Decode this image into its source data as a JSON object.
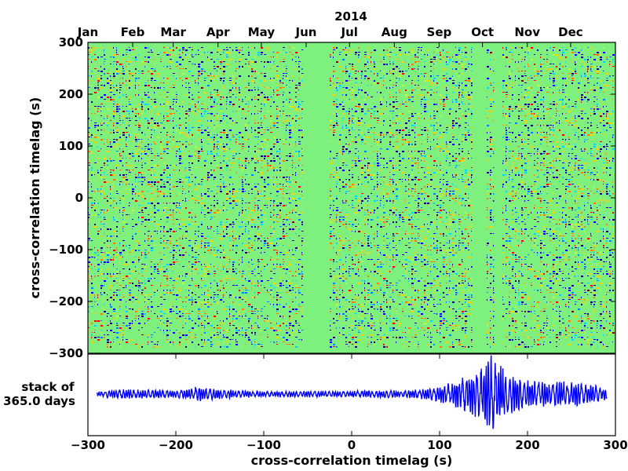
{
  "colors": {
    "background_fill": "#7ef07e",
    "waveform": "#0000ff",
    "palette": [
      "#00007f",
      "#0000ff",
      "#0080ff",
      "#00d4ff",
      "#40ffb7",
      "#b7ff40",
      "#ffd400",
      "#ff7a00",
      "#ff0000",
      "#7f0000"
    ]
  },
  "chart_data": [
    {
      "type": "heatmap",
      "title": "",
      "year_label": "2014",
      "month_labels": [
        "Jan",
        "Feb",
        "Mar",
        "Apr",
        "May",
        "Jun",
        "Jul",
        "Aug",
        "Sep",
        "Oct",
        "Nov",
        "Dec"
      ],
      "ylabel": "cross-correlation timelag (s)",
      "ylim": [
        -300,
        300
      ],
      "yticks": [
        300,
        200,
        100,
        0,
        -100,
        -200,
        -300
      ],
      "ytick_labels": [
        "300",
        "200",
        "100",
        "0",
        "−100",
        "−200",
        "−300"
      ],
      "xlim_days": [
        0,
        365
      ],
      "data_gaps_day_of_year": [
        [
          149,
          167
        ],
        [
          266,
          275
        ],
        [
          281,
          285
        ]
      ],
      "colormap": "jet"
    },
    {
      "type": "line",
      "label": "stack of\n365.0 days",
      "label_lines": [
        "stack of",
        "365.0 days"
      ],
      "xlabel": "cross-correlation timelag (s)",
      "xlim": [
        -300,
        300
      ],
      "xticks": [
        -300,
        -200,
        -100,
        0,
        100,
        200,
        300
      ],
      "xtick_labels": [
        "−300",
        "−200",
        "−100",
        "0",
        "100",
        "200",
        "300"
      ],
      "series": [
        {
          "description": "stacked cross-correlation waveform",
          "envelope": [
            {
              "x": -300,
              "amplitude": 0.03
            },
            {
              "x": -260,
              "amplitude": 0.12
            },
            {
              "x": -200,
              "amplitude": 0.1
            },
            {
              "x": -170,
              "amplitude": 0.18
            },
            {
              "x": -150,
              "amplitude": 0.12
            },
            {
              "x": -100,
              "amplitude": 0.07
            },
            {
              "x": 0,
              "amplitude": 0.08
            },
            {
              "x": 70,
              "amplitude": 0.1
            },
            {
              "x": 100,
              "amplitude": 0.2
            },
            {
              "x": 130,
              "amplitude": 0.45
            },
            {
              "x": 150,
              "amplitude": 0.7
            },
            {
              "x": 160,
              "amplitude": 1.0
            },
            {
              "x": 175,
              "amplitude": 0.55
            },
            {
              "x": 200,
              "amplitude": 0.35
            },
            {
              "x": 260,
              "amplitude": 0.3
            },
            {
              "x": 300,
              "amplitude": 0.1
            }
          ]
        }
      ]
    }
  ]
}
